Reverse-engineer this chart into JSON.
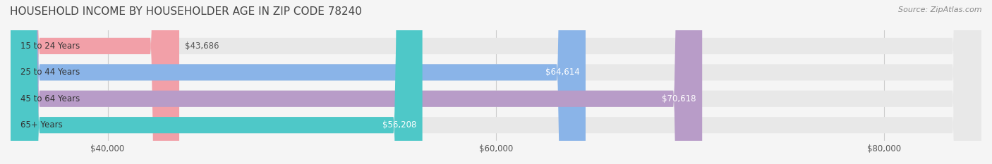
{
  "title": "HOUSEHOLD INCOME BY HOUSEHOLDER AGE IN ZIP CODE 78240",
  "source": "Source: ZipAtlas.com",
  "categories": [
    "15 to 24 Years",
    "25 to 44 Years",
    "45 to 64 Years",
    "65+ Years"
  ],
  "values": [
    43686,
    64614,
    70618,
    56208
  ],
  "bar_colors": [
    "#f2a0a8",
    "#8ab4e8",
    "#b89cc8",
    "#4ec8c8"
  ],
  "label_colors": [
    "#555555",
    "#ffffff",
    "#ffffff",
    "#ffffff"
  ],
  "xmin": 35000,
  "xmax": 85000,
  "xticks": [
    40000,
    60000,
    80000
  ],
  "xtick_labels": [
    "$40,000",
    "$60,000",
    "$80,000"
  ],
  "background_color": "#f5f5f5",
  "bar_bg_color": "#e8e8e8",
  "title_fontsize": 11,
  "source_fontsize": 8,
  "bar_height": 0.62,
  "figsize": [
    14.06,
    2.33
  ],
  "dpi": 100
}
